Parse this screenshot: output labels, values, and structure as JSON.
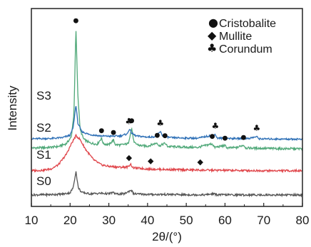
{
  "chart_data": {
    "type": "line",
    "title": "",
    "xlabel": "2θ/(°)",
    "ylabel": "Intensity",
    "xlim": [
      10,
      80
    ],
    "xticks": [
      10,
      20,
      30,
      40,
      50,
      60,
      70,
      80
    ],
    "yticks_shown": false,
    "legend_position": "top-right",
    "legend": [
      {
        "symbol": "●",
        "symbol_name": "circle",
        "label": "Cristobalite"
      },
      {
        "symbol": "◆",
        "symbol_name": "diamond",
        "label": "Mullite"
      },
      {
        "symbol": "♣",
        "symbol_name": "club",
        "label": "Corundum"
      }
    ],
    "series": [
      {
        "name": "S3",
        "color": "#4fa878",
        "points": [
          [
            10,
            0.12
          ],
          [
            14,
            0.14
          ],
          [
            17,
            0.2
          ],
          [
            19,
            0.35
          ],
          [
            20.3,
            0.7
          ],
          [
            21,
            2.0
          ],
          [
            21.5,
            6.6
          ],
          [
            22,
            3.0
          ],
          [
            22.6,
            1.1
          ],
          [
            23.5,
            0.6
          ],
          [
            25,
            0.4
          ],
          [
            27,
            0.32
          ],
          [
            28.1,
            0.65
          ],
          [
            28.6,
            0.35
          ],
          [
            30,
            0.3
          ],
          [
            31.2,
            0.55
          ],
          [
            31.7,
            0.3
          ],
          [
            33,
            0.28
          ],
          [
            35,
            0.35
          ],
          [
            35.9,
            1.2
          ],
          [
            36.5,
            0.4
          ],
          [
            38,
            0.25
          ],
          [
            40,
            0.22
          ],
          [
            42.5,
            0.4
          ],
          [
            43,
            0.22
          ],
          [
            44.5,
            0.38
          ],
          [
            45.2,
            0.2
          ],
          [
            48,
            0.18
          ],
          [
            50,
            0.16
          ],
          [
            53,
            0.15
          ],
          [
            56.7,
            0.35
          ],
          [
            57.3,
            0.15
          ],
          [
            60,
            0.25
          ],
          [
            60.6,
            0.12
          ],
          [
            63,
            0.14
          ],
          [
            64.8,
            0.28
          ],
          [
            65.4,
            0.12
          ],
          [
            70,
            0.1
          ],
          [
            75,
            0.08
          ],
          [
            80,
            0.08
          ]
        ]
      },
      {
        "name": "S2",
        "color": "#2d6fb6",
        "points": [
          [
            10,
            0.1
          ],
          [
            15,
            0.12
          ],
          [
            18,
            0.18
          ],
          [
            20,
            0.35
          ],
          [
            20.8,
            0.9
          ],
          [
            21.5,
            2.5
          ],
          [
            22,
            1.2
          ],
          [
            23,
            0.6
          ],
          [
            25,
            0.4
          ],
          [
            28,
            0.3
          ],
          [
            30,
            0.28
          ],
          [
            33,
            0.3
          ],
          [
            34.8,
            0.45
          ],
          [
            35.3,
            0.8
          ],
          [
            35.9,
            0.5
          ],
          [
            37,
            0.3
          ],
          [
            40,
            0.22
          ],
          [
            42,
            0.25
          ],
          [
            43.3,
            0.6
          ],
          [
            43.9,
            0.3
          ],
          [
            46,
            0.18
          ],
          [
            50,
            0.15
          ],
          [
            53,
            0.14
          ],
          [
            57.5,
            0.4
          ],
          [
            58,
            0.15
          ],
          [
            62,
            0.12
          ],
          [
            66,
            0.12
          ],
          [
            68.2,
            0.25
          ],
          [
            68.8,
            0.1
          ],
          [
            75,
            0.08
          ],
          [
            80,
            0.08
          ]
        ]
      },
      {
        "name": "S1",
        "color": "#e0474c",
        "points": [
          [
            10,
            0.05
          ],
          [
            13,
            0.08
          ],
          [
            15,
            0.15
          ],
          [
            17,
            0.4
          ],
          [
            19,
            1.0
          ],
          [
            20.5,
            1.7
          ],
          [
            21.5,
            2.1
          ],
          [
            22.5,
            1.9
          ],
          [
            24,
            1.3
          ],
          [
            26,
            0.7
          ],
          [
            28,
            0.4
          ],
          [
            30,
            0.3
          ],
          [
            33,
            0.25
          ],
          [
            35,
            0.28
          ],
          [
            35.6,
            0.45
          ],
          [
            36.2,
            0.22
          ],
          [
            40,
            0.15
          ],
          [
            45,
            0.12
          ],
          [
            50,
            0.1
          ],
          [
            55,
            0.08
          ],
          [
            60,
            0.07
          ],
          [
            70,
            0.05
          ],
          [
            80,
            0.05
          ]
        ]
      },
      {
        "name": "S0",
        "color": "#555555",
        "points": [
          [
            10,
            0.05
          ],
          [
            15,
            0.07
          ],
          [
            18,
            0.1
          ],
          [
            20,
            0.18
          ],
          [
            20.8,
            0.5
          ],
          [
            21.5,
            1.5
          ],
          [
            22.1,
            0.5
          ],
          [
            23,
            0.2
          ],
          [
            25,
            0.12
          ],
          [
            28,
            0.15
          ],
          [
            30,
            0.12
          ],
          [
            31,
            0.2
          ],
          [
            32,
            0.1
          ],
          [
            34,
            0.12
          ],
          [
            35.8,
            0.35
          ],
          [
            36.4,
            0.12
          ],
          [
            40,
            0.08
          ],
          [
            45,
            0.08
          ],
          [
            50,
            0.06
          ],
          [
            55,
            0.06
          ],
          [
            57,
            0.12
          ],
          [
            58,
            0.06
          ],
          [
            65,
            0.05
          ],
          [
            70,
            0.05
          ],
          [
            80,
            0.05
          ]
        ]
      }
    ],
    "annotations": [
      {
        "series": "S3",
        "type": "Cristobalite",
        "symbol": "●",
        "x": [
          21.5,
          28.1,
          31.2,
          35.9,
          42.5,
          44.5,
          56.7,
          60.0,
          64.8
        ]
      },
      {
        "series": "S2",
        "type": "Corundum",
        "symbol": "♣",
        "x": [
          35.2,
          43.3,
          57.5,
          68.2
        ]
      },
      {
        "series": "S1",
        "type": "Mullite",
        "symbol": "◆",
        "x": [
          35.2,
          40.8,
          53.6
        ]
      }
    ]
  }
}
